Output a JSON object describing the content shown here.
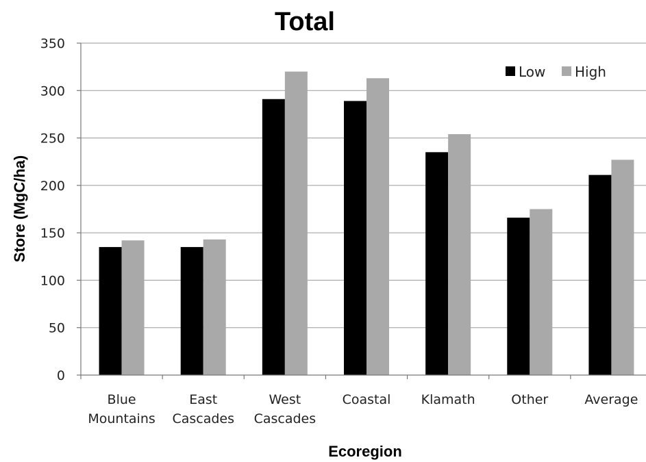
{
  "chart_data": {
    "type": "bar",
    "title": "Total",
    "xlabel": "Ecoregion",
    "ylabel": "Store (MgC/ha)",
    "ylim": [
      0,
      350
    ],
    "yticks": [
      0,
      50,
      100,
      150,
      200,
      250,
      300,
      350
    ],
    "categories": [
      [
        "Blue",
        "Mountains"
      ],
      [
        "East",
        "Cascades"
      ],
      [
        "West",
        "Cascades"
      ],
      [
        "Coastal"
      ],
      [
        "Klamath"
      ],
      [
        "Other"
      ],
      [
        "Average"
      ]
    ],
    "series": [
      {
        "name": "Low",
        "color": "#000000",
        "values": [
          135,
          135,
          291,
          289,
          235,
          166,
          211
        ]
      },
      {
        "name": "High",
        "color": "#a9a9a9",
        "values": [
          142,
          143,
          320,
          313,
          254,
          175,
          227
        ]
      }
    ],
    "grid": true,
    "legend_position": "top-right"
  }
}
